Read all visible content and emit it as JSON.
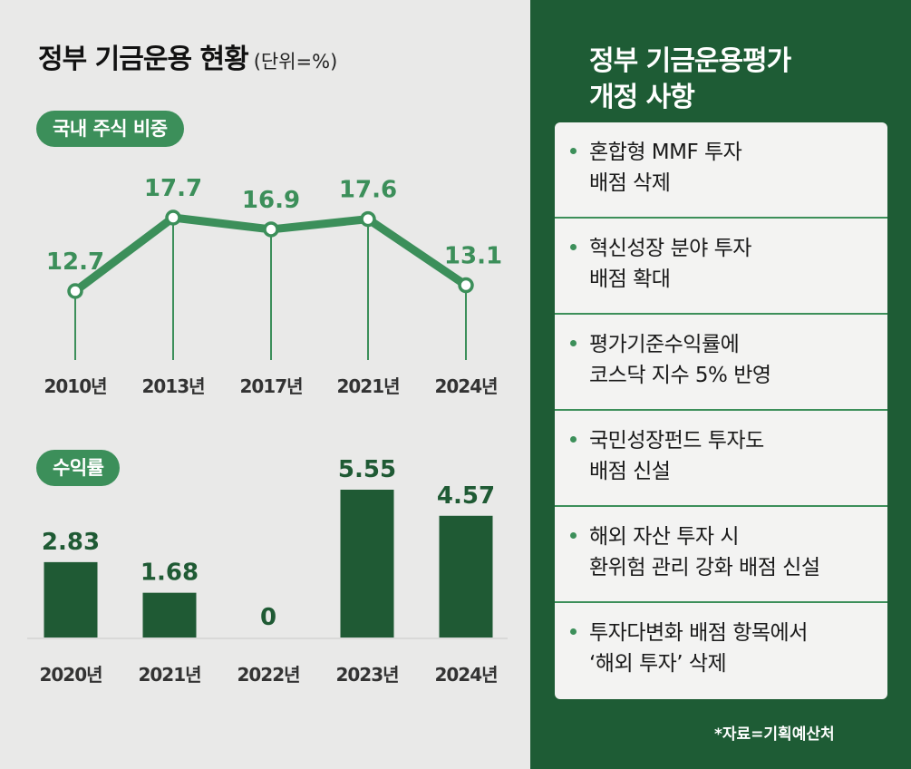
{
  "left_title": "정부 기금운용 현황",
  "left_unit": "(단위=%)",
  "right_title_line1": "정부 기금운용평가",
  "right_title_line2": "개정 사항",
  "source": "*자료=기획예산처",
  "colors": {
    "accent": "#3c8f5a",
    "dark_green": "#1e5c35",
    "bar": "#1f5a34"
  },
  "chart_data": [
    {
      "type": "line",
      "title": "국내 주식 비중",
      "categories": [
        "2010년",
        "2013년",
        "2017년",
        "2021년",
        "2024년"
      ],
      "values": [
        12.7,
        17.7,
        16.9,
        17.6,
        13.1
      ],
      "value_labels": [
        "12.7",
        "17.7",
        "16.9",
        "17.6",
        "13.1"
      ]
    },
    {
      "type": "bar",
      "title": "수익률",
      "categories": [
        "2020년",
        "2021년",
        "2022년",
        "2023년",
        "2024년"
      ],
      "values": [
        2.83,
        1.68,
        0,
        5.55,
        4.57
      ],
      "value_labels": [
        "2.83",
        "1.68",
        "0",
        "5.55",
        "4.57"
      ]
    }
  ],
  "changes": [
    {
      "line1": "혼합형 MMF 투자",
      "line2": "배점 삭제"
    },
    {
      "line1": "혁신성장 분야 투자",
      "line2": "배점 확대"
    },
    {
      "line1": "평가기준수익률에",
      "line2": "코스닥 지수 5% 반영"
    },
    {
      "line1": "국민성장펀드 투자도",
      "line2": "배점 신설"
    },
    {
      "line1": "해외 자산 투자 시",
      "line2": "환위험 관리 강화 배점 신설"
    },
    {
      "line1": "투자다변화 배점 항목에서",
      "line2": "‘해외 투자’ 삭제"
    }
  ]
}
